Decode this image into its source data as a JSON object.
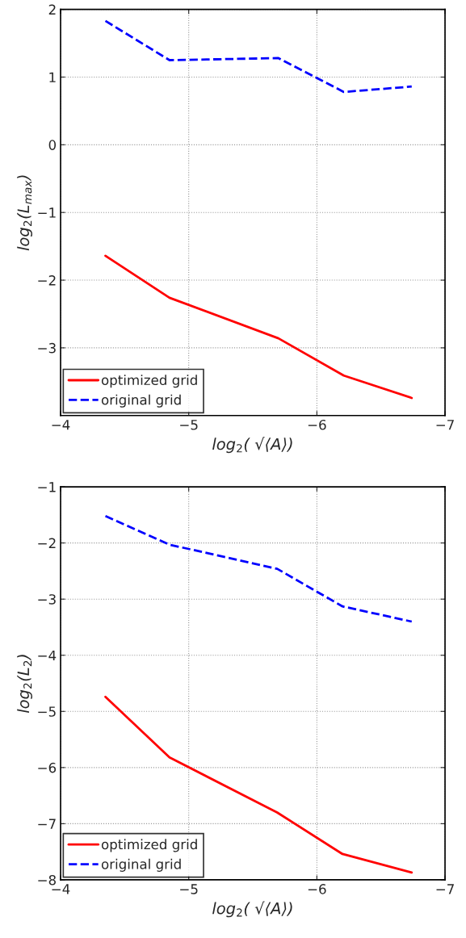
{
  "chart_data": [
    {
      "type": "line",
      "xlabel": "log$_{2}$( √⟨A⟩)",
      "ylabel": "log$_{2}$(L$_{max}$)",
      "xlim": [
        -4,
        -7
      ],
      "xticks": [
        -4,
        -5,
        -6,
        -7
      ],
      "ylim": [
        -4,
        2
      ],
      "yticks": [
        -3,
        -2,
        -1,
        0,
        1,
        2
      ],
      "grid": true,
      "legend": "bottom left",
      "series": [
        {
          "name": "optimized grid",
          "color": "#ff0000",
          "line_style": "solid",
          "x": [
            -4.35,
            -4.85,
            -5.7,
            -6.21,
            -6.74
          ],
          "values": [
            -1.64,
            -2.26,
            -2.86,
            -3.41,
            -3.74
          ]
        },
        {
          "name": "original grid",
          "color": "#0000ff",
          "line_style": "dashed",
          "x": [
            -4.35,
            -4.85,
            -5.7,
            -6.21,
            -6.74
          ],
          "values": [
            1.83,
            1.25,
            1.28,
            0.78,
            0.86
          ]
        }
      ]
    },
    {
      "type": "line",
      "xlabel": "log$_{2}$( √⟨A⟩)",
      "ylabel": "log$_{2}$(L$_{2}$)",
      "xlim": [
        -4,
        -7
      ],
      "xticks": [
        -4,
        -5,
        -6,
        -7
      ],
      "ylim": [
        -8,
        -1
      ],
      "yticks": [
        -8,
        -7,
        -6,
        -5,
        -4,
        -3,
        -2,
        -1
      ],
      "grid": true,
      "legend": "bottom left",
      "series": [
        {
          "name": "optimized grid",
          "color": "#ff0000",
          "line_style": "solid",
          "x": [
            -4.35,
            -4.85,
            -5.69,
            -6.2,
            -6.74
          ],
          "values": [
            -4.74,
            -5.82,
            -6.8,
            -7.54,
            -7.87
          ]
        },
        {
          "name": "original grid",
          "color": "#0000ff",
          "line_style": "dashed",
          "x": [
            -4.35,
            -4.85,
            -5.69,
            -6.2,
            -6.74
          ],
          "values": [
            -1.52,
            -2.03,
            -2.46,
            -3.13,
            -3.4
          ]
        }
      ]
    }
  ]
}
